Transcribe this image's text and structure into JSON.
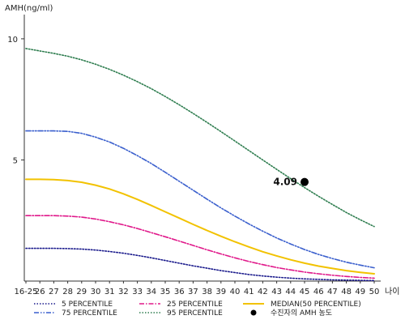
{
  "chart_data": {
    "type": "line",
    "ylabel": "AMH(ng/ml)",
    "xlabel": "나이",
    "ylim": [
      0,
      11
    ],
    "yticks": [
      5,
      10
    ],
    "x": [
      "16-25",
      "26",
      "27",
      "28",
      "29",
      "30",
      "31",
      "32",
      "33",
      "34",
      "35",
      "36",
      "37",
      "38",
      "39",
      "40",
      "41",
      "42",
      "43",
      "44",
      "45",
      "46",
      "47",
      "48",
      "49",
      "50"
    ],
    "series": [
      {
        "name": "5 PERCENTILE",
        "color": "#1a1a8c",
        "style": "dotted",
        "values": [
          1.35,
          1.35,
          1.35,
          1.34,
          1.32,
          1.28,
          1.22,
          1.15,
          1.06,
          0.96,
          0.85,
          0.74,
          0.63,
          0.53,
          0.43,
          0.35,
          0.27,
          0.21,
          0.16,
          0.12,
          0.09,
          0.07,
          0.05,
          0.04,
          0.03,
          0.02
        ]
      },
      {
        "name": "25 PERCENTILE",
        "color": "#e0188a",
        "style": "dashdot",
        "values": [
          2.7,
          2.7,
          2.7,
          2.68,
          2.64,
          2.56,
          2.45,
          2.32,
          2.17,
          2.0,
          1.83,
          1.65,
          1.47,
          1.29,
          1.12,
          0.96,
          0.81,
          0.68,
          0.56,
          0.46,
          0.37,
          0.3,
          0.24,
          0.19,
          0.15,
          0.12
        ]
      },
      {
        "name": "MEDIAN(50 PERCENTILE)",
        "color": "#f2c200",
        "style": "solid",
        "values": [
          4.2,
          4.2,
          4.19,
          4.15,
          4.08,
          3.96,
          3.8,
          3.6,
          3.37,
          3.12,
          2.86,
          2.6,
          2.34,
          2.09,
          1.85,
          1.62,
          1.41,
          1.21,
          1.04,
          0.88,
          0.74,
          0.62,
          0.52,
          0.43,
          0.36,
          0.3
        ]
      },
      {
        "name": "75 PERCENTILE",
        "color": "#3a5fcd",
        "style": "dashdotdot",
        "values": [
          6.2,
          6.2,
          6.2,
          6.18,
          6.1,
          5.94,
          5.74,
          5.48,
          5.18,
          4.85,
          4.49,
          4.12,
          3.75,
          3.38,
          3.02,
          2.68,
          2.36,
          2.06,
          1.78,
          1.53,
          1.3,
          1.1,
          0.93,
          0.78,
          0.66,
          0.55
        ]
      },
      {
        "name": "95 PERCENTILE",
        "color": "#2e7d4f",
        "style": "dotted",
        "values": [
          9.6,
          9.5,
          9.4,
          9.28,
          9.13,
          8.95,
          8.74,
          8.5,
          8.23,
          7.94,
          7.62,
          7.28,
          6.92,
          6.55,
          6.17,
          5.78,
          5.39,
          5.0,
          4.61,
          4.23,
          3.86,
          3.5,
          3.16,
          2.83,
          2.53,
          2.25
        ]
      }
    ],
    "marker": {
      "name": "수진자의 AMH 농도",
      "x": "45",
      "y": 4.09,
      "label": "4.09",
      "color": "#000000"
    },
    "legend": {
      "position": "bottom",
      "columns": 3
    },
    "grid": false
  }
}
